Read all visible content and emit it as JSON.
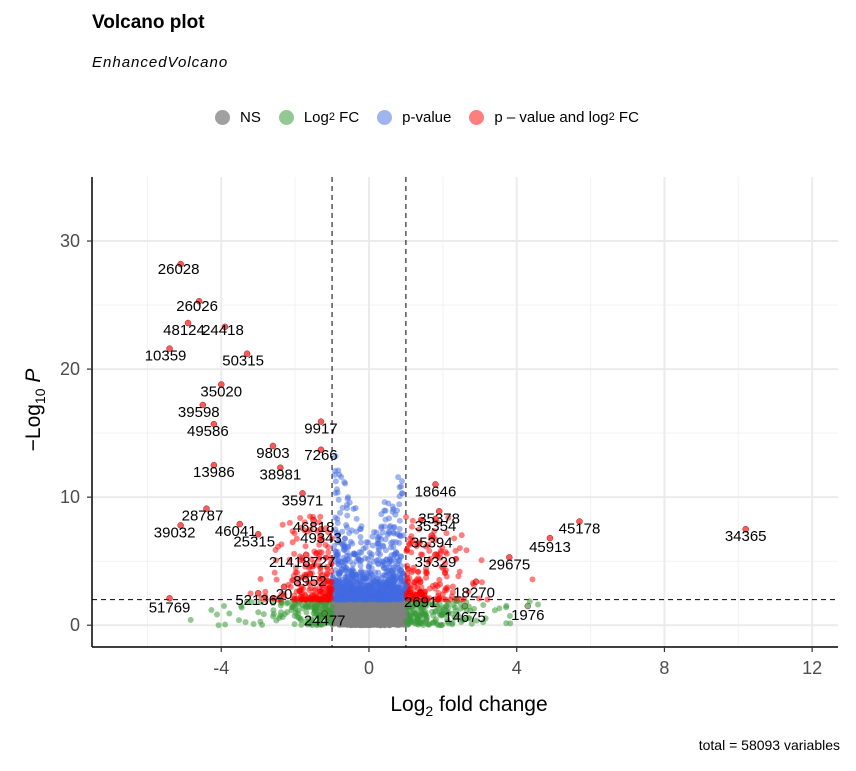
{
  "title": "Volcano plot",
  "subtitle": "EnhancedVolcano",
  "caption": "total = 58093 variables",
  "colors": {
    "ns": "#808080",
    "log2fc": "#3a9a3a",
    "pvalue": "#4169e1",
    "both": "#ff0000"
  },
  "legend": [
    {
      "label": "NS",
      "sub": "",
      "tail": "",
      "color": "#808080"
    },
    {
      "label": "Log",
      "sub": "2",
      "tail": " FC",
      "color": "#3a9a3a"
    },
    {
      "label": "p-value",
      "sub": "",
      "tail": "",
      "color": "#4169e1"
    },
    {
      "label": "p – value and log",
      "sub": "2",
      "tail": " FC",
      "color": "#ff0000"
    }
  ],
  "chart_data": {
    "type": "scatter",
    "title": "Volcano plot",
    "subtitle": "EnhancedVolcano",
    "xlabel": "Log2 fold change",
    "ylabel": "−Log10 P",
    "xlim": [
      -7.5,
      12.7
    ],
    "ylim": [
      -1.7,
      35
    ],
    "xticks": [
      -4,
      0,
      4,
      8,
      12
    ],
    "yticks": [
      0,
      10,
      20,
      30
    ],
    "grid": true,
    "legend_position": "top",
    "thresholds": {
      "log2fc": [
        -1,
        1
      ],
      "neg_log10_p": 2
    },
    "labeled_points": [
      {
        "label": "26028",
        "x": -5.1,
        "y": 28.2
      },
      {
        "label": "26026",
        "x": -4.6,
        "y": 25.3
      },
      {
        "label": "48124",
        "x": -4.9,
        "y": 23.6
      },
      {
        "label": "24418",
        "x": -3.9,
        "y": 23.3
      },
      {
        "label": "10359",
        "x": -5.4,
        "y": 21.6
      },
      {
        "label": "50315",
        "x": -3.3,
        "y": 21.2
      },
      {
        "label": "35020",
        "x": -4.0,
        "y": 18.8
      },
      {
        "label": "39598",
        "x": -4.5,
        "y": 17.2
      },
      {
        "label": "49586",
        "x": -4.2,
        "y": 15.7
      },
      {
        "label": "9917",
        "x": -1.3,
        "y": 15.9
      },
      {
        "label": "9803",
        "x": -2.6,
        "y": 14.0
      },
      {
        "label": "38981",
        "x": -2.4,
        "y": 12.3
      },
      {
        "label": "7266",
        "x": -1.3,
        "y": 13.7
      },
      {
        "label": "13986",
        "x": -4.2,
        "y": 12.5
      },
      {
        "label": "35971",
        "x": -1.8,
        "y": 10.3
      },
      {
        "label": "28787",
        "x": -4.4,
        "y": 9.1
      },
      {
        "label": "46818",
        "x": -1.5,
        "y": 8.2
      },
      {
        "label": "46041",
        "x": -3.5,
        "y": 7.9
      },
      {
        "label": "49343",
        "x": -1.3,
        "y": 7.5
      },
      {
        "label": "39032",
        "x": -5.1,
        "y": 7.8
      },
      {
        "label": "25315",
        "x": -3.0,
        "y": 7.1
      },
      {
        "label": "21418727",
        "x": -1.7,
        "y": 5.5
      },
      {
        "label": "8952",
        "x": -1.6,
        "y": 4.0
      },
      {
        "label": "20",
        "x": -2.3,
        "y": 3.0
      },
      {
        "label": "52136",
        "x": -3.0,
        "y": 2.5
      },
      {
        "label": "24477",
        "x": -1.2,
        "y": 0.9
      },
      {
        "label": "51769",
        "x": -5.4,
        "y": 2.1
      },
      {
        "label": "18646",
        "x": 1.8,
        "y": 11.0
      },
      {
        "label": "35378",
        "x": 1.9,
        "y": 8.9
      },
      {
        "label": "35354",
        "x": 1.8,
        "y": 8.3
      },
      {
        "label": "35394",
        "x": 1.7,
        "y": 7.0
      },
      {
        "label": "35329",
        "x": 1.8,
        "y": 5.5
      },
      {
        "label": "2691",
        "x": 1.4,
        "y": 2.5
      },
      {
        "label": "18270",
        "x": 2.9,
        "y": 3.4
      },
      {
        "label": "29675",
        "x": 3.8,
        "y": 5.3
      },
      {
        "label": "14675",
        "x": 2.6,
        "y": 1.5
      },
      {
        "label": "1976",
        "x": 4.3,
        "y": 1.5
      },
      {
        "label": "45178",
        "x": 5.7,
        "y": 8.1
      },
      {
        "label": "45913",
        "x": 4.9,
        "y": 6.8
      },
      {
        "label": "34365",
        "x": 10.2,
        "y": 7.5
      }
    ]
  }
}
